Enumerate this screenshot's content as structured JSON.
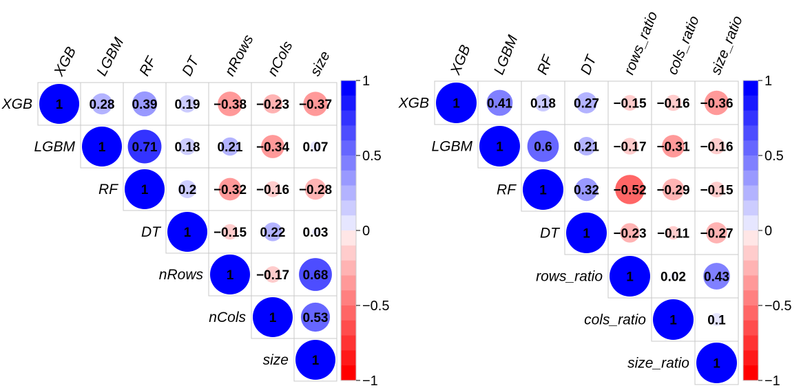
{
  "chart_data": [
    {
      "type": "heatmap",
      "subtype": "correlation-upper-triangle",
      "title": "",
      "variables": [
        "XGB",
        "LGBM",
        "RF",
        "DT",
        "nRows",
        "nCols",
        "size"
      ],
      "matrix": [
        [
          1,
          0.28,
          0.39,
          0.19,
          -0.38,
          -0.23,
          -0.37
        ],
        [
          null,
          1,
          0.71,
          0.18,
          0.21,
          -0.34,
          0.07
        ],
        [
          null,
          null,
          1,
          0.2,
          -0.32,
          -0.16,
          -0.28
        ],
        [
          null,
          null,
          null,
          1,
          -0.15,
          0.22,
          0.03
        ],
        [
          null,
          null,
          null,
          null,
          1,
          -0.17,
          0.68
        ],
        [
          null,
          null,
          null,
          null,
          null,
          1,
          0.53
        ],
        [
          null,
          null,
          null,
          null,
          null,
          null,
          1
        ]
      ],
      "labels": [
        [
          "1",
          "0.28",
          "0.39",
          "0.19",
          "−0.38",
          "−0.23",
          "−0.37"
        ],
        [
          null,
          "1",
          "0.71",
          "0.18",
          "0.21",
          "−0.34",
          "0.07"
        ],
        [
          null,
          null,
          "1",
          "0.2",
          "−0.32",
          "−0.16",
          "−0.28"
        ],
        [
          null,
          null,
          null,
          "1",
          "−0.15",
          "0.22",
          "0.03"
        ],
        [
          null,
          null,
          null,
          null,
          "1",
          "−0.17",
          "0.68"
        ],
        [
          null,
          null,
          null,
          null,
          null,
          "1",
          "0.53"
        ],
        [
          null,
          null,
          null,
          null,
          null,
          null,
          "1"
        ]
      ],
      "colorbar": {
        "range": [
          -1,
          1
        ],
        "ticks": [
          "1",
          "0.5",
          "0",
          "−0.5",
          "−1"
        ],
        "tick_values": [
          1,
          0.5,
          0,
          -0.5,
          -1
        ]
      }
    },
    {
      "type": "heatmap",
      "subtype": "correlation-upper-triangle",
      "title": "",
      "variables": [
        "XGB",
        "LGBM",
        "RF",
        "DT",
        "rows_ratio",
        "cols_ratio",
        "size_ratio"
      ],
      "matrix": [
        [
          1,
          0.41,
          0.18,
          0.27,
          -0.15,
          -0.16,
          -0.36
        ],
        [
          null,
          1,
          0.6,
          0.21,
          -0.17,
          -0.31,
          -0.16
        ],
        [
          null,
          null,
          1,
          0.32,
          -0.52,
          -0.29,
          -0.15
        ],
        [
          null,
          null,
          null,
          1,
          -0.23,
          -0.11,
          -0.27
        ],
        [
          null,
          null,
          null,
          null,
          1,
          0.02,
          0.43
        ],
        [
          null,
          null,
          null,
          null,
          null,
          1,
          0.1
        ],
        [
          null,
          null,
          null,
          null,
          null,
          null,
          1
        ]
      ],
      "labels": [
        [
          "1",
          "0.41",
          "0.18",
          "0.27",
          "−0.15",
          "−0.16",
          "−0.36"
        ],
        [
          null,
          "1",
          "0.6",
          "0.21",
          "−0.17",
          "−0.31",
          "−0.16"
        ],
        [
          null,
          null,
          "1",
          "0.32",
          "−0.52",
          "−0.29",
          "−0.15"
        ],
        [
          null,
          null,
          null,
          "1",
          "−0.23",
          "−0.11",
          "−0.27"
        ],
        [
          null,
          null,
          null,
          null,
          "1",
          "0.02",
          "0.43"
        ],
        [
          null,
          null,
          null,
          null,
          null,
          "1",
          "0.1"
        ],
        [
          null,
          null,
          null,
          null,
          null,
          null,
          "1"
        ]
      ],
      "colorbar": {
        "range": [
          -1,
          1
        ],
        "ticks": [
          "1",
          "0.5",
          "0",
          "−0.5",
          "−1"
        ],
        "tick_values": [
          1,
          0.5,
          0,
          -0.5,
          -1
        ]
      }
    }
  ]
}
